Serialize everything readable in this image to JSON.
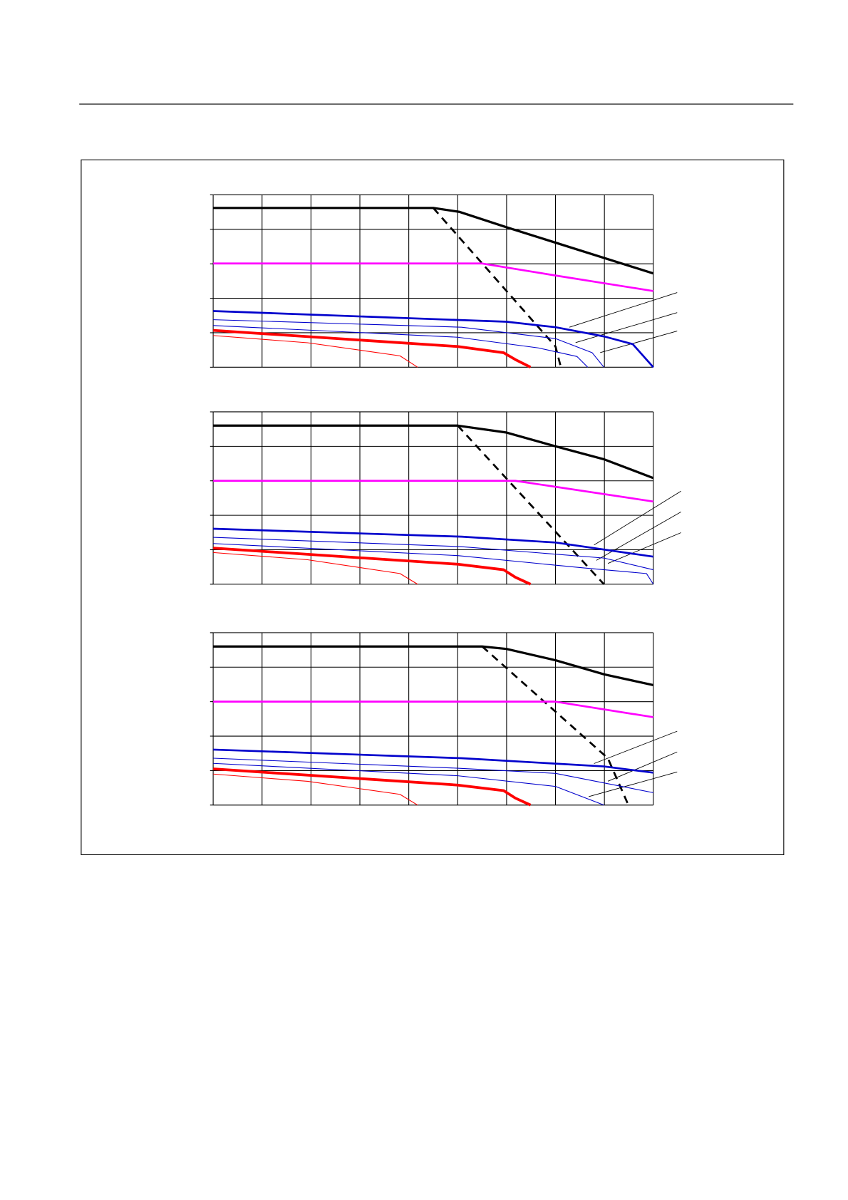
{
  "chart_data": [
    {
      "type": "line",
      "xlim": [
        0,
        9
      ],
      "ylim": [
        0,
        5
      ],
      "xticks": [
        0,
        1,
        2,
        3,
        4,
        5,
        6,
        7,
        8,
        9
      ],
      "yticks": [
        0,
        1,
        2,
        3,
        4,
        5
      ],
      "grid": true,
      "series": [
        {
          "color": "#000000",
          "width": 3,
          "x": [
            0,
            4.5,
            5.03,
            6,
            9
          ],
          "values": [
            4.62,
            4.62,
            4.51,
            4.06,
            2.72
          ]
        },
        {
          "color": "#000000",
          "width": 2.5,
          "dashed": true,
          "x": [
            4.5,
            7.0,
            7.11
          ],
          "values": [
            4.62,
            0.6,
            0
          ]
        },
        {
          "color": "#ff00ff",
          "width": 2.5,
          "x": [
            0,
            5.5,
            7.0,
            9
          ],
          "values": [
            3.01,
            3.01,
            2.66,
            2.21
          ]
        },
        {
          "color": "#0000cc",
          "width": 2.5,
          "x": [
            0,
            6,
            7,
            8,
            8.58,
            9
          ],
          "values": [
            1.63,
            1.32,
            1.16,
            0.89,
            0.67,
            0
          ]
        },
        {
          "color": "#0000cc",
          "width": 1,
          "x": [
            0,
            5.08,
            7,
            7.75,
            7.99
          ],
          "values": [
            1.38,
            1.16,
            0.83,
            0.42,
            0
          ]
        },
        {
          "color": "#0000cc",
          "width": 1,
          "x": [
            0,
            5,
            6.65,
            7.44,
            7.66
          ],
          "values": [
            1.21,
            0.87,
            0.56,
            0.31,
            0
          ]
        },
        {
          "color": "#ff0000",
          "width": 3.5,
          "x": [
            0,
            5,
            5.94,
            6.18,
            6.49
          ],
          "values": [
            1.07,
            0.6,
            0.42,
            0.22,
            0
          ]
        },
        {
          "color": "#ff0000",
          "width": 1,
          "x": [
            0,
            1.93,
            3.82,
            4.18
          ],
          "values": [
            0.92,
            0.71,
            0.33,
            0
          ]
        }
      ]
    },
    {
      "type": "line",
      "xlim": [
        0,
        9
      ],
      "ylim": [
        0,
        5
      ],
      "xticks": [
        0,
        1,
        2,
        3,
        4,
        5,
        6,
        7,
        8,
        9
      ],
      "yticks": [
        0,
        1,
        2,
        3,
        4,
        5
      ],
      "grid": true,
      "series": [
        {
          "color": "#000000",
          "width": 3,
          "x": [
            0,
            5,
            6,
            7,
            8,
            9
          ],
          "values": [
            4.6,
            4.6,
            4.4,
            4.0,
            3.62,
            3.08
          ]
        },
        {
          "color": "#000000",
          "width": 2.5,
          "dashed": true,
          "x": [
            5,
            7.99
          ],
          "values": [
            4.6,
            0
          ]
        },
        {
          "color": "#ff00ff",
          "width": 2.5,
          "x": [
            0,
            6.18,
            9
          ],
          "values": [
            3.0,
            3.0,
            2.4
          ]
        },
        {
          "color": "#0000cc",
          "width": 2.5,
          "x": [
            0,
            5.08,
            7,
            9
          ],
          "values": [
            1.61,
            1.38,
            1.21,
            0.8
          ]
        },
        {
          "color": "#0000cc",
          "width": 1,
          "x": [
            0,
            5.08,
            7.99,
            9
          ],
          "values": [
            1.36,
            1.09,
            0.76,
            0.42
          ]
        },
        {
          "color": "#0000cc",
          "width": 1,
          "x": [
            0,
            5,
            7.59,
            8.86,
            9
          ],
          "values": [
            1.18,
            0.83,
            0.47,
            0.31,
            0
          ]
        },
        {
          "color": "#ff0000",
          "width": 3.5,
          "x": [
            0,
            5,
            5.94,
            6.18,
            6.49
          ],
          "values": [
            1.05,
            0.58,
            0.42,
            0.2,
            0
          ]
        },
        {
          "color": "#ff0000",
          "width": 1,
          "x": [
            0,
            1.93,
            3.82,
            4.18
          ],
          "values": [
            0.92,
            0.71,
            0.31,
            0
          ]
        }
      ]
    },
    {
      "type": "line",
      "xlim": [
        0,
        9
      ],
      "ylim": [
        0,
        5
      ],
      "xticks": [
        0,
        1,
        2,
        3,
        4,
        5,
        6,
        7,
        8,
        9
      ],
      "yticks": [
        0,
        1,
        2,
        3,
        4,
        5
      ],
      "grid": true,
      "series": [
        {
          "color": "#000000",
          "width": 3,
          "x": [
            0,
            5.5,
            6,
            7,
            8,
            9
          ],
          "values": [
            4.6,
            4.6,
            4.53,
            4.2,
            3.79,
            3.48
          ]
        },
        {
          "color": "#000000",
          "width": 2.5,
          "dashed": true,
          "x": [
            5.5,
            8.07,
            8.49
          ],
          "values": [
            4.6,
            1.36,
            0
          ]
        },
        {
          "color": "#ff00ff",
          "width": 2.5,
          "x": [
            0,
            7,
            9
          ],
          "values": [
            3.0,
            3.0,
            2.55
          ]
        },
        {
          "color": "#0000cc",
          "width": 2.5,
          "x": [
            0,
            5.08,
            7.99,
            9
          ],
          "values": [
            1.61,
            1.36,
            1.12,
            0.94
          ]
        },
        {
          "color": "#0000cc",
          "width": 1,
          "x": [
            0,
            5,
            7,
            9
          ],
          "values": [
            1.36,
            1.07,
            0.92,
            0.36
          ]
        },
        {
          "color": "#0000cc",
          "width": 1,
          "x": [
            0,
            5,
            7,
            7.99
          ],
          "values": [
            1.21,
            0.85,
            0.54,
            0
          ]
        },
        {
          "color": "#ff0000",
          "width": 3.5,
          "x": [
            0,
            5,
            5.94,
            6.18,
            6.49
          ],
          "values": [
            1.05,
            0.58,
            0.42,
            0.2,
            0
          ]
        },
        {
          "color": "#ff0000",
          "width": 1,
          "x": [
            0,
            1.93,
            3.82,
            4.18
          ],
          "values": [
            0.9,
            0.69,
            0.31,
            0
          ]
        }
      ]
    }
  ]
}
